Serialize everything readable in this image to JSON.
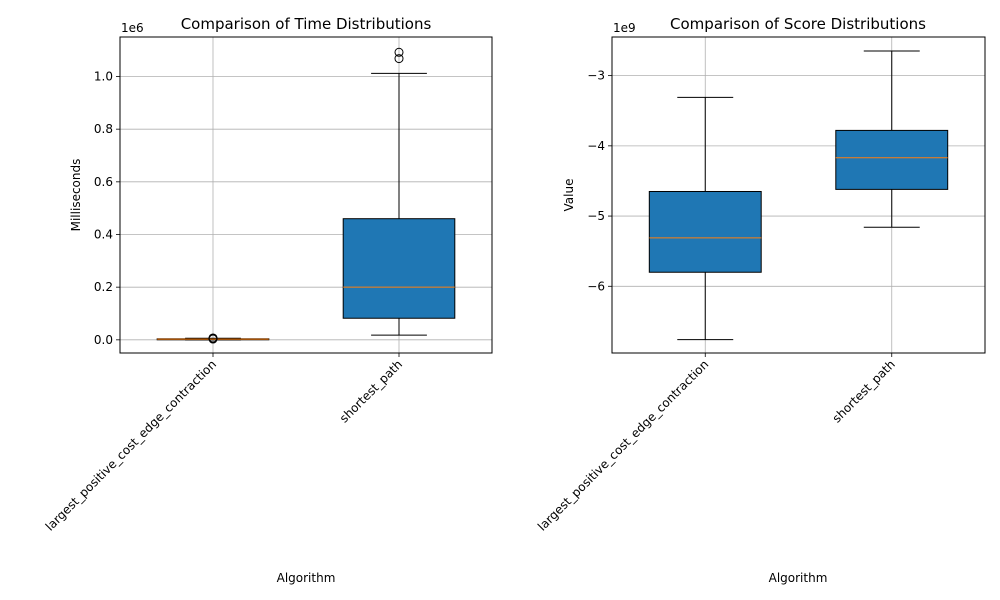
{
  "chart_data": [
    {
      "type": "box",
      "title": "Comparison of Time Distributions",
      "xlabel": "Algorithm",
      "ylabel": "Milliseconds",
      "scale_label": "1e6",
      "scale": 1000000,
      "ylim": [
        -50000,
        1150000
      ],
      "yticks": [
        0,
        200000,
        400000,
        600000,
        800000,
        1000000
      ],
      "ytick_labels": [
        "0.0",
        "0.2",
        "0.4",
        "0.6",
        "0.8",
        "1.0"
      ],
      "grid": true,
      "categories": [
        "largest_positive_cost_edge_contraction",
        "shortest_path"
      ],
      "boxes": [
        {
          "whisker_low": 0,
          "q1": 1000,
          "median": 2500,
          "q3": 4000,
          "whisker_high": 6000,
          "outliers": [
            3000,
            5000,
            7000
          ]
        },
        {
          "whisker_low": 18000,
          "q1": 82000,
          "median": 200000,
          "q3": 460000,
          "whisker_high": 1012000,
          "outliers": [
            1068000,
            1092000
          ]
        }
      ],
      "box_color": "#1f77b4",
      "median_color": "#ff7f0e"
    },
    {
      "type": "box",
      "title": "Comparison of Score Distributions",
      "xlabel": "Algorithm",
      "ylabel": "Value",
      "scale_label": "1e9",
      "scale": 1000000000,
      "ylim": [
        -6950000000,
        -2450000000
      ],
      "yticks": [
        -6000000000,
        -5000000000,
        -4000000000,
        -3000000000
      ],
      "ytick_labels": [
        "−6",
        "−5",
        "−4",
        "−3"
      ],
      "grid": true,
      "categories": [
        "largest_positive_cost_edge_contraction",
        "shortest_path"
      ],
      "boxes": [
        {
          "whisker_low": -6760000000,
          "q1": -5800000000,
          "median": -5310000000,
          "q3": -4650000000,
          "whisker_high": -3310000000,
          "outliers": []
        },
        {
          "whisker_low": -5160000000,
          "q1": -4620000000,
          "median": -4170000000,
          "q3": -3780000000,
          "whisker_high": -2650000000,
          "outliers": []
        }
      ],
      "box_color": "#1f77b4",
      "median_color": "#ff7f0e"
    }
  ]
}
